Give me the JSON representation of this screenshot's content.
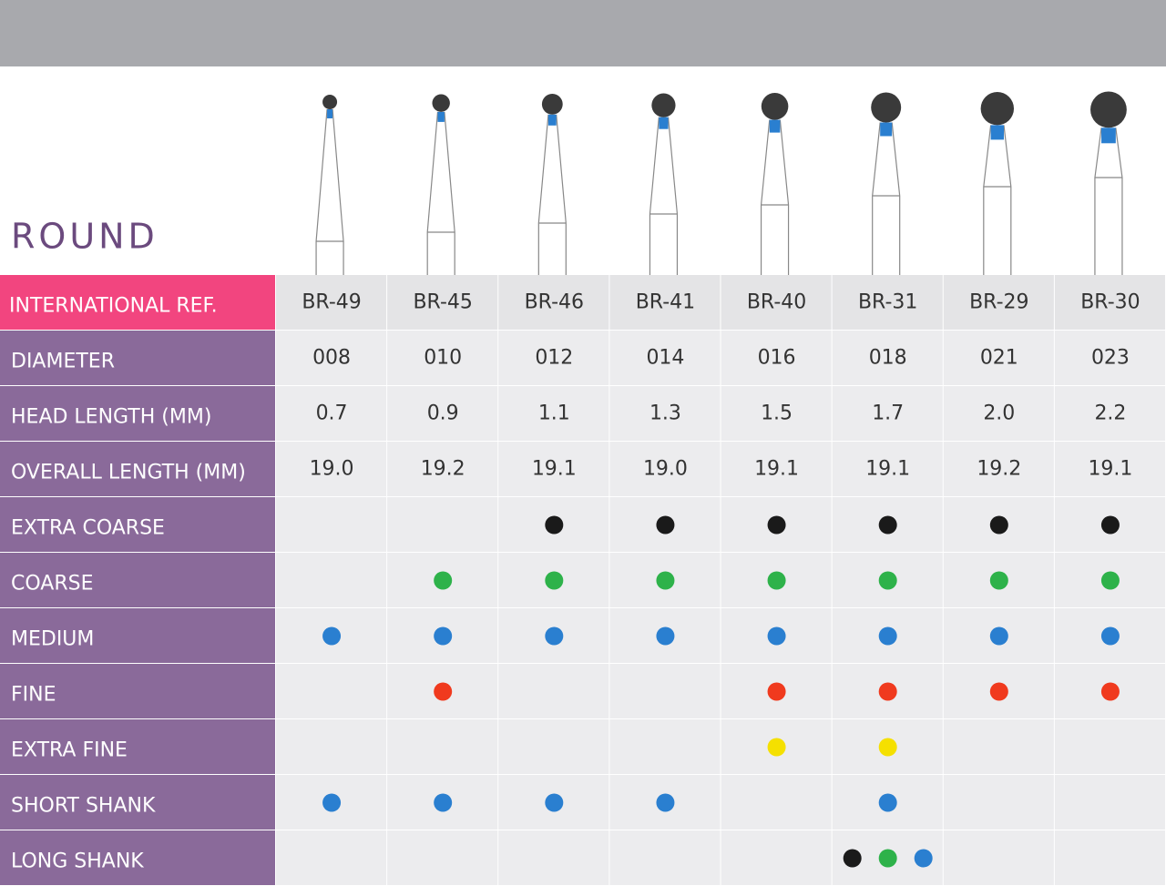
{
  "header": {
    "title": "ROUND"
  },
  "table": {
    "ref_label": "INTERNATIONAL REF.",
    "refs": [
      "BR-49",
      "BR-45",
      "BR-46",
      "BR-41",
      "BR-40",
      "BR-31",
      "BR-29",
      "BR-30"
    ],
    "text_rows": [
      {
        "label": "DIAMETER",
        "cells": [
          "008",
          "010",
          "012",
          "014",
          "016",
          "018",
          "021",
          "023"
        ]
      },
      {
        "label": "HEAD LENGTH (MM)",
        "cells": [
          "0.7",
          "0.9",
          "1.1",
          "1.3",
          "1.5",
          "1.7",
          "2.0",
          "2.2"
        ]
      },
      {
        "label": "OVERALL LENGTH (MM)",
        "cells": [
          "19.0",
          "19.2",
          "19.1",
          "19.0",
          "19.1",
          "19.1",
          "19.2",
          "19.1"
        ]
      }
    ],
    "dot_rows": [
      {
        "label": "EXTRA COARSE",
        "cells": [
          [],
          [],
          [
            "#1a1a1a"
          ],
          [
            "#1a1a1a"
          ],
          [
            "#1a1a1a"
          ],
          [
            "#1a1a1a"
          ],
          [
            "#1a1a1a"
          ],
          [
            "#1a1a1a"
          ]
        ]
      },
      {
        "label": "COARSE",
        "cells": [
          [],
          [
            "#2eb24a"
          ],
          [
            "#2eb24a"
          ],
          [
            "#2eb24a"
          ],
          [
            "#2eb24a"
          ],
          [
            "#2eb24a"
          ],
          [
            "#2eb24a"
          ],
          [
            "#2eb24a"
          ]
        ]
      },
      {
        "label": "MEDIUM",
        "cells": [
          [
            "#2a7fd0"
          ],
          [
            "#2a7fd0"
          ],
          [
            "#2a7fd0"
          ],
          [
            "#2a7fd0"
          ],
          [
            "#2a7fd0"
          ],
          [
            "#2a7fd0"
          ],
          [
            "#2a7fd0"
          ],
          [
            "#2a7fd0"
          ]
        ]
      },
      {
        "label": "FINE",
        "cells": [
          [],
          [
            "#f03a1e"
          ],
          [],
          [],
          [
            "#f03a1e"
          ],
          [
            "#f03a1e"
          ],
          [
            "#f03a1e"
          ],
          [
            "#f03a1e"
          ]
        ]
      },
      {
        "label": "EXTRA FINE",
        "cells": [
          [],
          [],
          [],
          [],
          [
            "#f5e000"
          ],
          [
            "#f5e000"
          ],
          [],
          []
        ]
      },
      {
        "label": "SHORT SHANK",
        "cells": [
          [
            "#2a7fd0"
          ],
          [
            "#2a7fd0"
          ],
          [
            "#2a7fd0"
          ],
          [
            "#2a7fd0"
          ],
          [],
          [
            "#2a7fd0"
          ],
          [],
          []
        ]
      },
      {
        "label": "LONG SHANK",
        "cells": [
          [],
          [],
          [],
          [],
          [],
          [
            "#1a1a1a",
            "#2eb24a",
            "#2a7fd0"
          ],
          [],
          []
        ]
      }
    ]
  }
}
